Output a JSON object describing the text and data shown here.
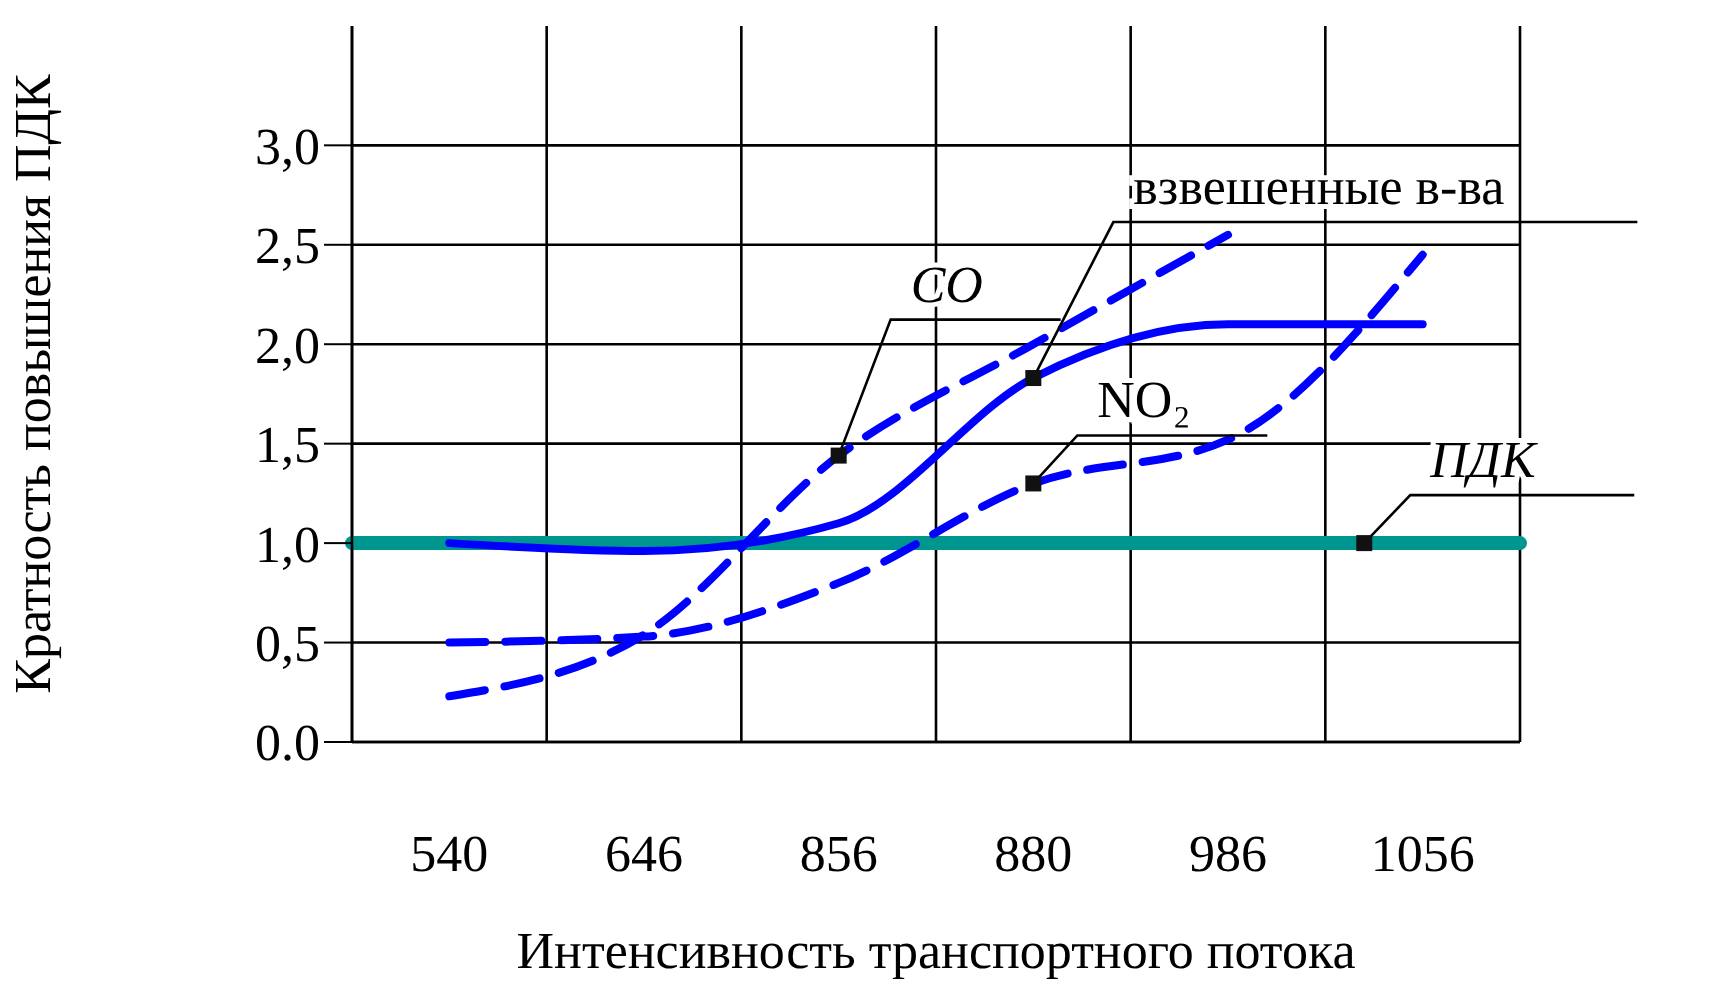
{
  "chart_data": {
    "type": "line",
    "xlabel": "Интенсивность транспортного потока",
    "ylabel": "Кратность повышения ПДК",
    "categories": [
      "540",
      "646",
      "856",
      "880",
      "986",
      "1056"
    ],
    "series": [
      {
        "name": "CO",
        "color": "#0000ff",
        "line_style": "dashed",
        "values": [
          0.23,
          0.54,
          1.44,
          2.0,
          2.55,
          null
        ]
      },
      {
        "name": "взвешенные в-ва",
        "color": "#0000ff",
        "line_style": "solid",
        "values": [
          1.0,
          0.96,
          1.1,
          1.83,
          2.1,
          2.1
        ]
      },
      {
        "name": "NO₂",
        "color": "#0000ff",
        "line_style": "dashed",
        "values": [
          0.5,
          0.53,
          0.8,
          1.3,
          1.52,
          2.45
        ]
      }
    ],
    "ylim": [
      0,
      3.6
    ],
    "yticks": [
      {
        "value": 0,
        "label": "0.0"
      },
      {
        "value": 0.5,
        "label": "0,5"
      },
      {
        "value": 1,
        "label": "1,0"
      },
      {
        "value": 1.5,
        "label": "1,5"
      },
      {
        "value": 2,
        "label": "2,0"
      },
      {
        "value": 2.5,
        "label": "2,5"
      },
      {
        "value": 3,
        "label": "3,0"
      }
    ],
    "ref_lines": [
      {
        "axis": "y",
        "value": 1.0,
        "label": "ПДК",
        "color": "#009690"
      }
    ],
    "grid": true,
    "marker": "none"
  }
}
